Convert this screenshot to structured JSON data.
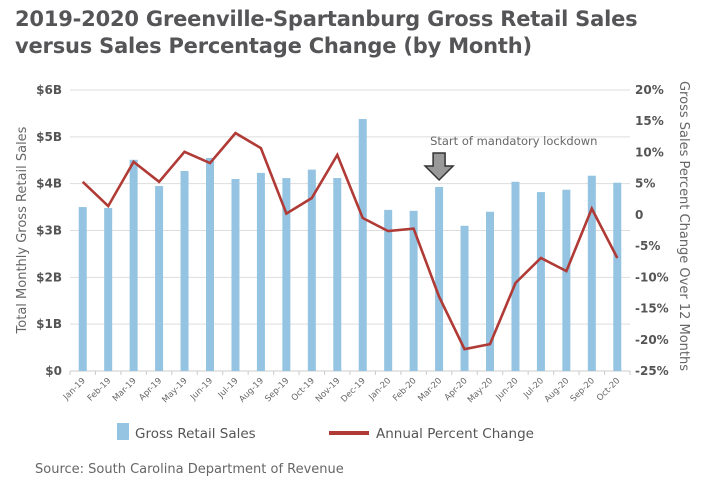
{
  "chart_data": {
    "type": "bar",
    "title": "2019-2020 Greenville-Spartanburg Gross Retail Sales versus Sales Percentage Change (by Month)",
    "title_lines": [
      "2019-2020 Greenville-Spartanburg Gross Retail Sales",
      "versus Sales Percentage Change (by Month)"
    ],
    "categories": [
      "Jan-19",
      "Feb-19",
      "Mar-19",
      "Apr-19",
      "May-19",
      "Jun-19",
      "Jul-19",
      "Aug-19",
      "Sep-19",
      "Oct-19",
      "Nov-19",
      "Dec-19",
      "Jan-20",
      "Feb-20",
      "Mar-20",
      "Apr-20",
      "May-20",
      "Jun-20",
      "Jul-20",
      "Aug-20",
      "Sep-20",
      "Oct-20"
    ],
    "series": [
      {
        "name": "Gross Retail Sales",
        "type": "bar",
        "axis": "left",
        "unit": "billions USD",
        "color": "#94c4e2",
        "values": [
          3.5,
          3.48,
          4.51,
          3.95,
          4.27,
          4.55,
          4.1,
          4.23,
          4.12,
          4.3,
          4.12,
          5.38,
          3.44,
          3.42,
          3.93,
          3.1,
          3.4,
          4.04,
          3.82,
          3.87,
          4.17,
          4.02
        ]
      },
      {
        "name": "Annual Percent Change",
        "type": "line",
        "axis": "right",
        "unit": "percent",
        "color": "#b03a35",
        "values": [
          5.3,
          1.4,
          8.5,
          5.3,
          10.1,
          8.3,
          13.1,
          10.7,
          0.2,
          2.7,
          9.6,
          -0.5,
          -2.6,
          -2.2,
          -13.1,
          -21.5,
          -20.7,
          -10.9,
          -6.9,
          -9.0,
          1.0,
          -6.9
        ]
      }
    ],
    "left_axis": {
      "label": "Total Monthly Gross Retail Sales",
      "range": [
        0,
        6
      ],
      "ticks": [
        0,
        1,
        2,
        3,
        4,
        5,
        6
      ],
      "tick_labels": [
        "$0",
        "$1B",
        "$2B",
        "$3B",
        "$4B",
        "$5B",
        "$6B"
      ]
    },
    "right_axis": {
      "label": "Gross Sales Percent Change Over 12 Months",
      "range": [
        -25,
        20
      ],
      "ticks": [
        -25,
        -20,
        -15,
        -10,
        -5,
        0,
        5,
        10,
        15,
        20
      ],
      "tick_labels": [
        "-25%",
        "-20%",
        "-15%",
        "-10%",
        "-5%",
        "0",
        "5%",
        "10%",
        "15%",
        "20%"
      ]
    },
    "grid": true,
    "annotation": {
      "text": "Start of mandatory lockdown",
      "category": "Mar-20",
      "marker": "down-arrow",
      "arrow_color": "#999999"
    },
    "legend": {
      "placement": "bottom",
      "items": [
        "Gross Retail Sales",
        "Annual Percent Change"
      ]
    },
    "source": "Source: South Carolina Department of Revenue"
  }
}
